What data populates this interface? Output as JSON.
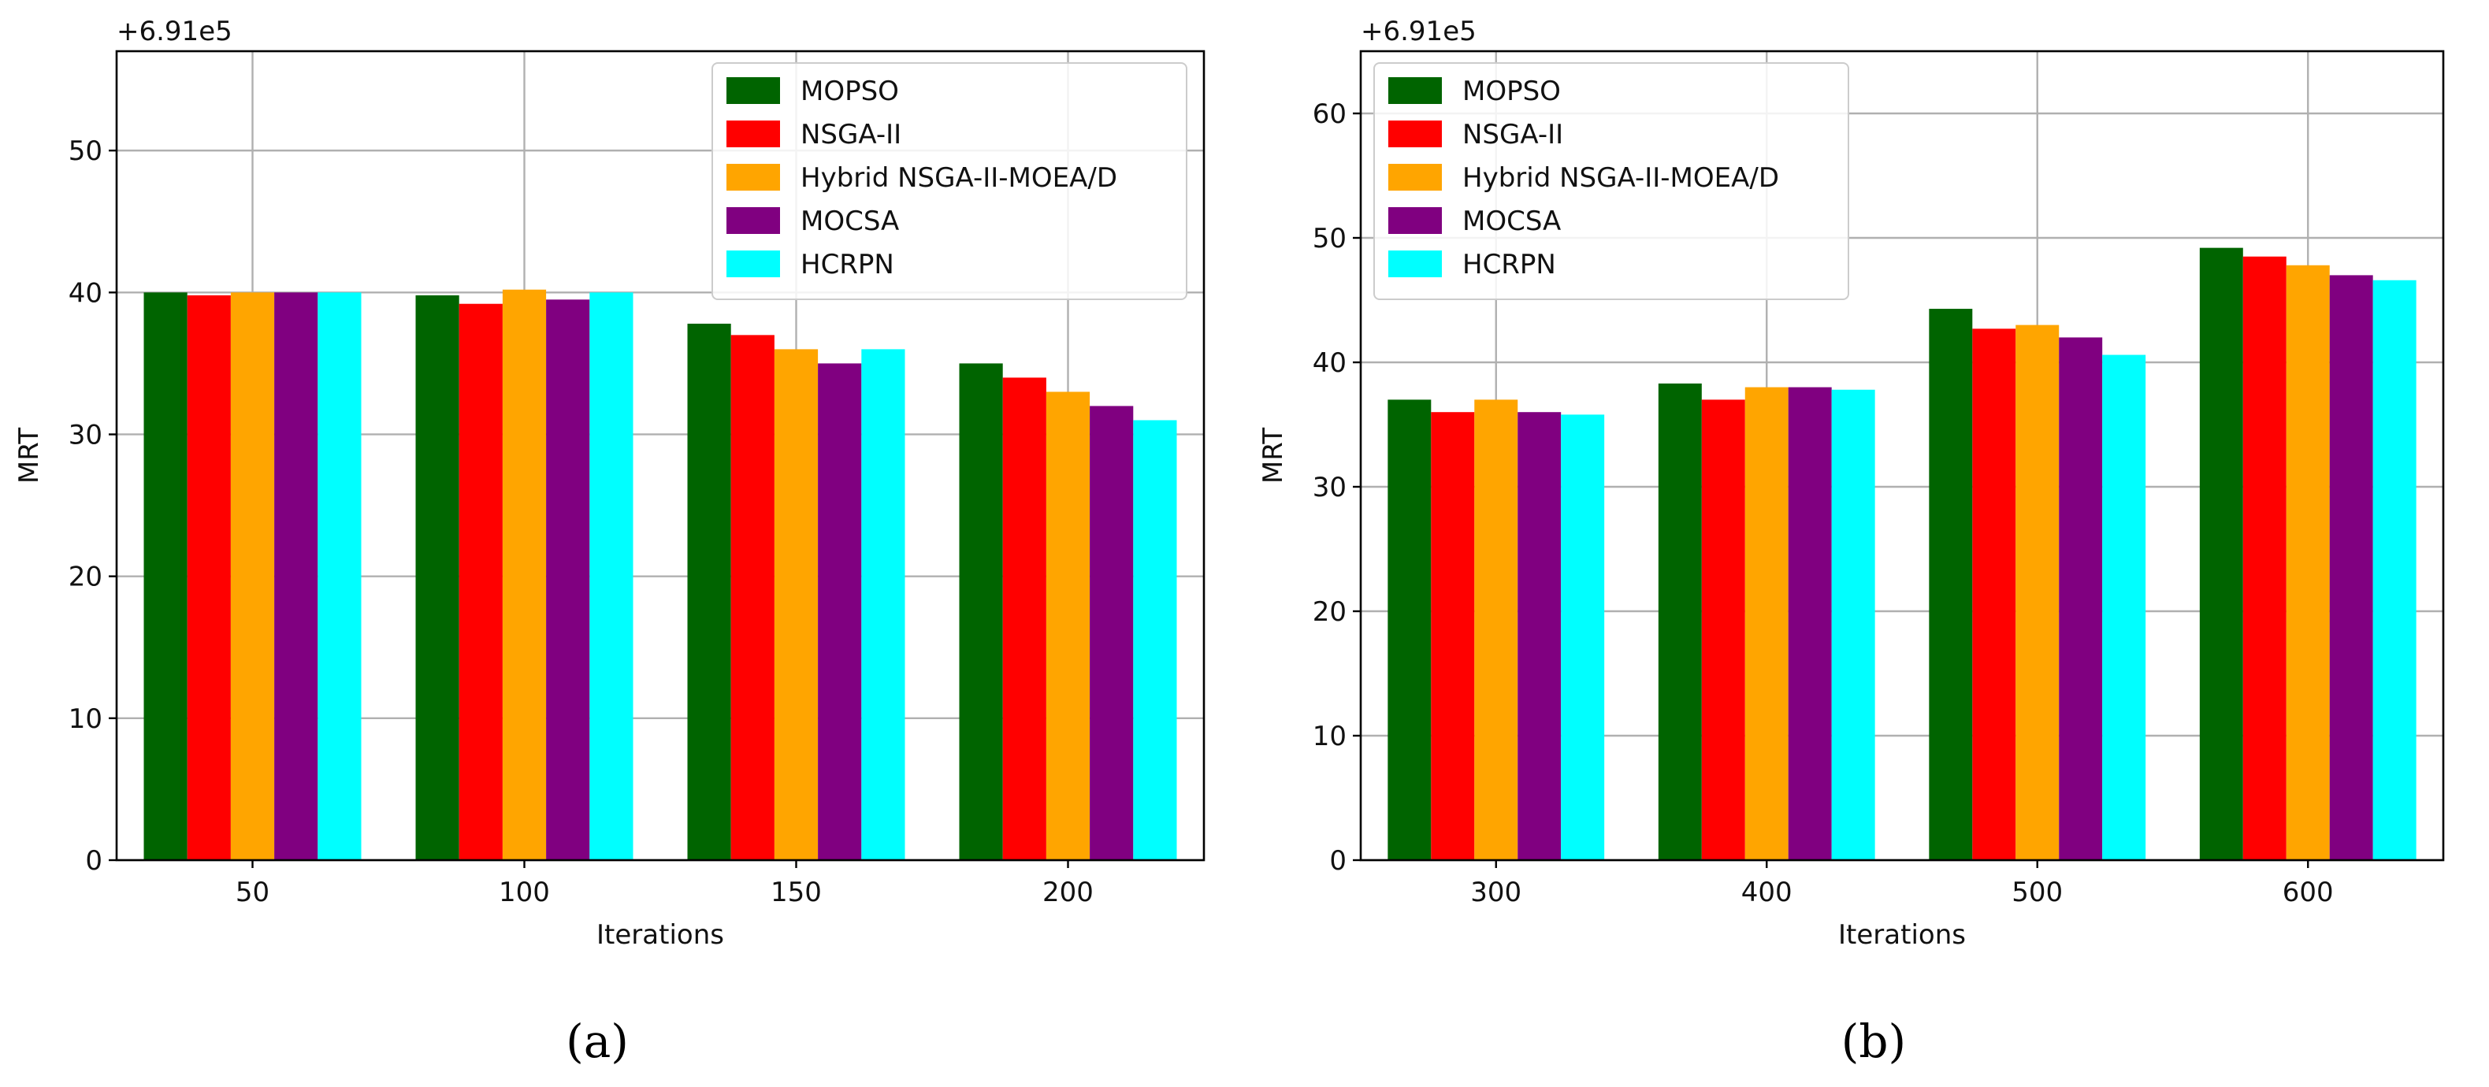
{
  "chart_data": [
    {
      "type": "bar",
      "panel": "a",
      "caption": "(a)",
      "offset_label": "+6.91e5",
      "xlabel": "Iterations",
      "ylabel": "MRT",
      "ylim": [
        0,
        57
      ],
      "yticks": [
        0,
        10,
        20,
        30,
        40,
        50
      ],
      "grid": true,
      "legend_position": "top-right",
      "categories": [
        "50",
        "100",
        "150",
        "200"
      ],
      "series": [
        {
          "name": "MOPSO",
          "color": "#006400",
          "values": [
            40.0,
            39.8,
            37.8,
            35.0
          ]
        },
        {
          "name": "NSGA-II",
          "color": "#ff0000",
          "values": [
            39.8,
            39.2,
            37.0,
            34.0
          ]
        },
        {
          "name": "Hybrid NSGA-II-MOEA/D",
          "color": "#ffa500",
          "values": [
            40.0,
            40.2,
            36.0,
            33.0
          ]
        },
        {
          "name": "MOCSA",
          "color": "#800080",
          "values": [
            40.0,
            39.5,
            35.0,
            32.0
          ]
        },
        {
          "name": "HCRPN",
          "color": "#00ffff",
          "values": [
            40.0,
            40.0,
            36.0,
            31.0
          ]
        }
      ]
    },
    {
      "type": "bar",
      "panel": "b",
      "caption": "(b)",
      "offset_label": "+6.91e5",
      "xlabel": "Iterations",
      "ylabel": "MRT",
      "ylim": [
        0,
        65
      ],
      "yticks": [
        0,
        10,
        20,
        30,
        40,
        50,
        60
      ],
      "grid": true,
      "legend_position": "top-left",
      "categories": [
        "300",
        "400",
        "500",
        "600"
      ],
      "series": [
        {
          "name": "MOPSO",
          "color": "#006400",
          "values": [
            37.0,
            38.3,
            44.3,
            49.2
          ]
        },
        {
          "name": "NSGA-II",
          "color": "#ff0000",
          "values": [
            36.0,
            37.0,
            42.7,
            48.5
          ]
        },
        {
          "name": "Hybrid NSGA-II-MOEA/D",
          "color": "#ffa500",
          "values": [
            37.0,
            38.0,
            43.0,
            47.8
          ]
        },
        {
          "name": "MOCSA",
          "color": "#800080",
          "values": [
            36.0,
            38.0,
            42.0,
            47.0
          ]
        },
        {
          "name": "HCRPN",
          "color": "#00ffff",
          "values": [
            35.8,
            37.8,
            40.6,
            46.6
          ]
        }
      ]
    }
  ]
}
